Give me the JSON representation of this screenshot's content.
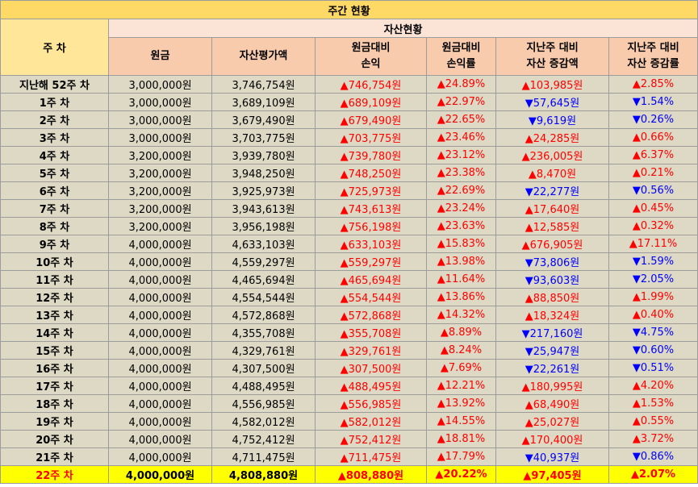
{
  "title": "주간 현황",
  "header": {
    "week_col": "주 차",
    "group": "자산현황",
    "cols": [
      {
        "l1": "원금",
        "l2": ""
      },
      {
        "l1": "자산평가액",
        "l2": ""
      },
      {
        "l1": "원금대비",
        "l2": "손익"
      },
      {
        "l1": "원금대비",
        "l2": "손익률"
      },
      {
        "l1": "지난주 대비",
        "l2": "자산 증감액"
      },
      {
        "l1": "지난주 대비",
        "l2": "자산 증감률"
      }
    ]
  },
  "colors": {
    "up": "#ff0000",
    "down": "#0000ff",
    "highlight": "#ffff00"
  },
  "rows": [
    {
      "week": "지난해 52주 차",
      "principal": "3,000,000원",
      "value": "3,746,754원",
      "pl": "746,754원",
      "pl_dir": "up",
      "plr": "24.89%",
      "plr_dir": "up",
      "chg": "103,985원",
      "chg_dir": "up",
      "chgr": "2.85%",
      "chgr_dir": "up"
    },
    {
      "week": "1주 차",
      "principal": "3,000,000원",
      "value": "3,689,109원",
      "pl": "689,109원",
      "pl_dir": "up",
      "plr": "22.97%",
      "plr_dir": "up",
      "chg": "57,645원",
      "chg_dir": "down",
      "chgr": "1.54%",
      "chgr_dir": "down"
    },
    {
      "week": "2주 차",
      "principal": "3,000,000원",
      "value": "3,679,490원",
      "pl": "679,490원",
      "pl_dir": "up",
      "plr": "22.65%",
      "plr_dir": "up",
      "chg": "9,619원",
      "chg_dir": "down",
      "chgr": "0.26%",
      "chgr_dir": "down"
    },
    {
      "week": "3주 차",
      "principal": "3,000,000원",
      "value": "3,703,775원",
      "pl": "703,775원",
      "pl_dir": "up",
      "plr": "23.46%",
      "plr_dir": "up",
      "chg": "24,285원",
      "chg_dir": "up",
      "chgr": "0.66%",
      "chgr_dir": "up"
    },
    {
      "week": "4주 차",
      "principal": "3,200,000원",
      "value": "3,939,780원",
      "pl": "739,780원",
      "pl_dir": "up",
      "plr": "23.12%",
      "plr_dir": "up",
      "chg": "236,005원",
      "chg_dir": "up",
      "chgr": "6.37%",
      "chgr_dir": "up"
    },
    {
      "week": "5주 차",
      "principal": "3,200,000원",
      "value": "3,948,250원",
      "pl": "748,250원",
      "pl_dir": "up",
      "plr": "23.38%",
      "plr_dir": "up",
      "chg": "8,470원",
      "chg_dir": "up",
      "chgr": "0.21%",
      "chgr_dir": "up"
    },
    {
      "week": "6주 차",
      "principal": "3,200,000원",
      "value": "3,925,973원",
      "pl": "725,973원",
      "pl_dir": "up",
      "plr": "22.69%",
      "plr_dir": "up",
      "chg": "22,277원",
      "chg_dir": "down",
      "chgr": "0.56%",
      "chgr_dir": "down"
    },
    {
      "week": "7주 차",
      "principal": "3,200,000원",
      "value": "3,943,613원",
      "pl": "743,613원",
      "pl_dir": "up",
      "plr": "23.24%",
      "plr_dir": "up",
      "chg": "17,640원",
      "chg_dir": "up",
      "chgr": "0.45%",
      "chgr_dir": "up"
    },
    {
      "week": "8주 차",
      "principal": "3,200,000원",
      "value": "3,956,198원",
      "pl": "756,198원",
      "pl_dir": "up",
      "plr": "23.63%",
      "plr_dir": "up",
      "chg": "12,585원",
      "chg_dir": "up",
      "chgr": "0.32%",
      "chgr_dir": "up"
    },
    {
      "week": "9주 차",
      "principal": "4,000,000원",
      "value": "4,633,103원",
      "pl": "633,103원",
      "pl_dir": "up",
      "plr": "15.83%",
      "plr_dir": "up",
      "chg": "676,905원",
      "chg_dir": "up",
      "chgr": "17.11%",
      "chgr_dir": "up"
    },
    {
      "week": "10주 차",
      "principal": "4,000,000원",
      "value": "4,559,297원",
      "pl": "559,297원",
      "pl_dir": "up",
      "plr": "13.98%",
      "plr_dir": "up",
      "chg": "73,806원",
      "chg_dir": "down",
      "chgr": "1.59%",
      "chgr_dir": "down"
    },
    {
      "week": "11주 차",
      "principal": "4,000,000원",
      "value": "4,465,694원",
      "pl": "465,694원",
      "pl_dir": "up",
      "plr": "11.64%",
      "plr_dir": "up",
      "chg": "93,603원",
      "chg_dir": "down",
      "chgr": "2.05%",
      "chgr_dir": "down"
    },
    {
      "week": "12주 차",
      "principal": "4,000,000원",
      "value": "4,554,544원",
      "pl": "554,544원",
      "pl_dir": "up",
      "plr": "13.86%",
      "plr_dir": "up",
      "chg": "88,850원",
      "chg_dir": "up",
      "chgr": "1.99%",
      "chgr_dir": "up"
    },
    {
      "week": "13주 차",
      "principal": "4,000,000원",
      "value": "4,572,868원",
      "pl": "572,868원",
      "pl_dir": "up",
      "plr": "14.32%",
      "plr_dir": "up",
      "chg": "18,324원",
      "chg_dir": "up",
      "chgr": "0.40%",
      "chgr_dir": "up"
    },
    {
      "week": "14주 차",
      "principal": "4,000,000원",
      "value": "4,355,708원",
      "pl": "355,708원",
      "pl_dir": "up",
      "plr": "8.89%",
      "plr_dir": "up",
      "chg": "217,160원",
      "chg_dir": "down",
      "chgr": "4.75%",
      "chgr_dir": "down"
    },
    {
      "week": "15주 차",
      "principal": "4,000,000원",
      "value": "4,329,761원",
      "pl": "329,761원",
      "pl_dir": "up",
      "plr": "8.24%",
      "plr_dir": "up",
      "chg": "25,947원",
      "chg_dir": "down",
      "chgr": "0.60%",
      "chgr_dir": "down"
    },
    {
      "week": "16주 차",
      "principal": "4,000,000원",
      "value": "4,307,500원",
      "pl": "307,500원",
      "pl_dir": "up",
      "plr": "7.69%",
      "plr_dir": "up",
      "chg": "22,261원",
      "chg_dir": "down",
      "chgr": "0.51%",
      "chgr_dir": "down"
    },
    {
      "week": "17주 차",
      "principal": "4,000,000원",
      "value": "4,488,495원",
      "pl": "488,495원",
      "pl_dir": "up",
      "plr": "12.21%",
      "plr_dir": "up",
      "chg": "180,995원",
      "chg_dir": "up",
      "chgr": "4.20%",
      "chgr_dir": "up"
    },
    {
      "week": "18주 차",
      "principal": "4,000,000원",
      "value": "4,556,985원",
      "pl": "556,985원",
      "pl_dir": "up",
      "plr": "13.92%",
      "plr_dir": "up",
      "chg": "68,490원",
      "chg_dir": "up",
      "chgr": "1.53%",
      "chgr_dir": "up"
    },
    {
      "week": "19주 차",
      "principal": "4,000,000원",
      "value": "4,582,012원",
      "pl": "582,012원",
      "pl_dir": "up",
      "plr": "14.55%",
      "plr_dir": "up",
      "chg": "25,027원",
      "chg_dir": "up",
      "chgr": "0.55%",
      "chgr_dir": "up"
    },
    {
      "week": "20주 차",
      "principal": "4,000,000원",
      "value": "4,752,412원",
      "pl": "752,412원",
      "pl_dir": "up",
      "plr": "18.81%",
      "plr_dir": "up",
      "chg": "170,400원",
      "chg_dir": "up",
      "chgr": "3.72%",
      "chgr_dir": "up"
    },
    {
      "week": "21주 차",
      "principal": "4,000,000원",
      "value": "4,711,475원",
      "pl": "711,475원",
      "pl_dir": "up",
      "plr": "17.79%",
      "plr_dir": "up",
      "chg": "40,937원",
      "chg_dir": "down",
      "chgr": "0.86%",
      "chgr_dir": "down"
    },
    {
      "week": "22주 차",
      "principal": "4,000,000원",
      "value": "4,808,880원",
      "pl": "808,880원",
      "pl_dir": "up",
      "plr": "20.22%",
      "plr_dir": "up",
      "chg": "97,405원",
      "chg_dir": "up",
      "chgr": "2.07%",
      "chgr_dir": "up",
      "highlight": true
    }
  ]
}
